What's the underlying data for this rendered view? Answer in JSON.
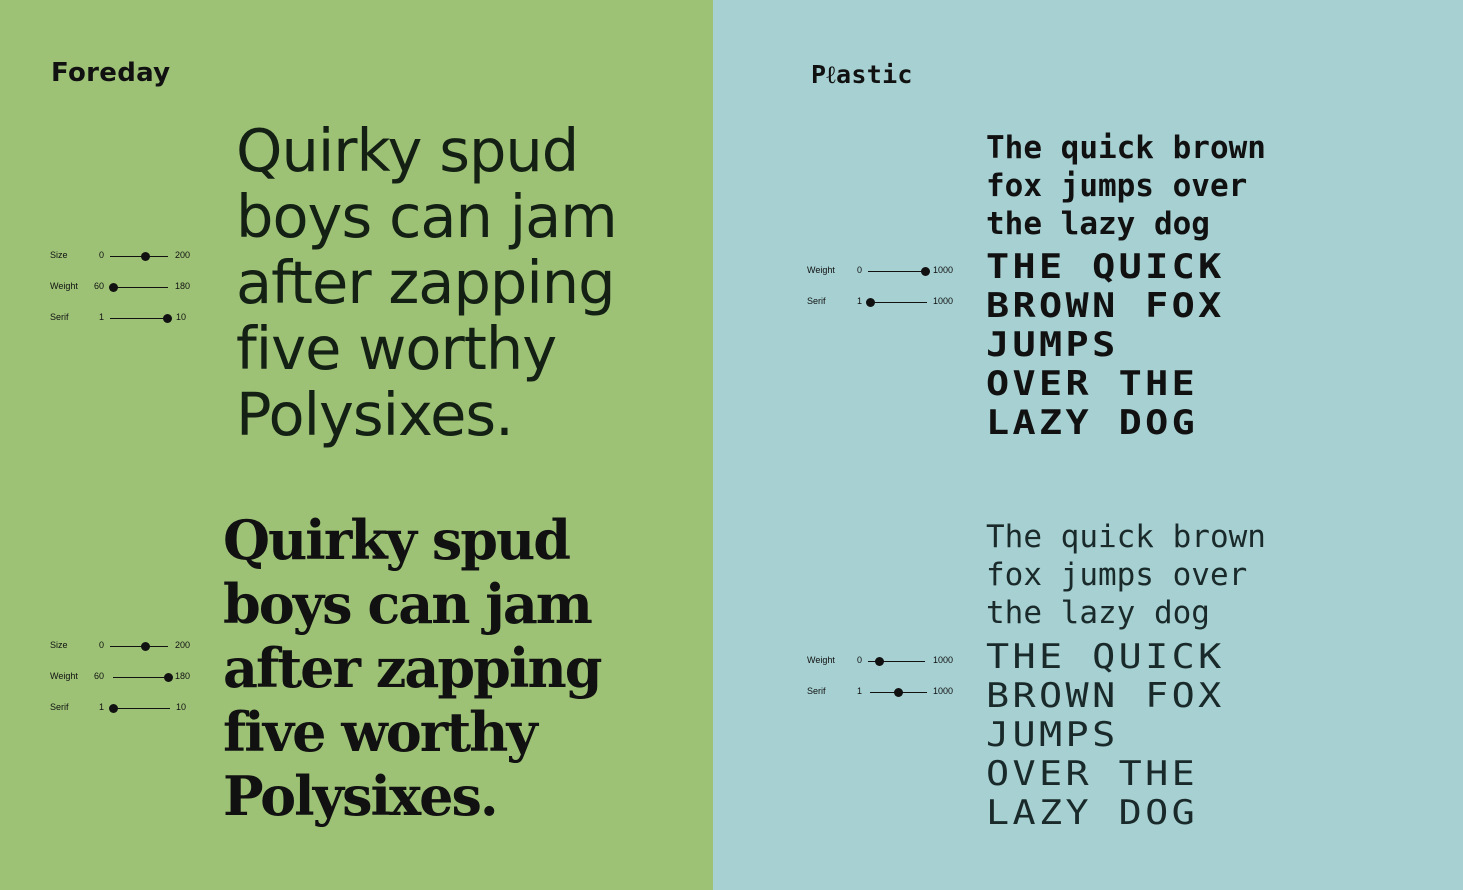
{
  "left": {
    "title": "Foreday",
    "color": "#9dc276",
    "specimens": [
      {
        "text": "Quirky spud\nboys can jam\nafter zapping\nfive worthy\nPolysixes.",
        "controls": [
          {
            "label": "Size",
            "min": "0",
            "max": "200",
            "value": 120
          },
          {
            "label": "Weight",
            "min": "60",
            "max": "180",
            "value": 60
          },
          {
            "label": "Serif",
            "min": "1",
            "max": "10",
            "value": 10
          }
        ]
      },
      {
        "text": "Quirky spud\nboys can jam\nafter zapping\nfive worthy\nPolysixes.",
        "controls": [
          {
            "label": "Size",
            "min": "0",
            "max": "200",
            "value": 120
          },
          {
            "label": "Weight",
            "min": "60",
            "max": "180",
            "value": 180
          },
          {
            "label": "Serif",
            "min": "1",
            "max": "10",
            "value": 1
          }
        ]
      }
    ]
  },
  "right": {
    "title": "Pℓastic",
    "color": "#a6d0d2",
    "specimens": [
      {
        "text_lower": "The quick brown\nfox jumps over\nthe lazy dog",
        "text_caps": "THE QUICK\nBROWN FOX\nJUMPS\nOVER THE\nLAZY DOG",
        "controls": [
          {
            "label": "Weight",
            "min": "0",
            "max": "1000",
            "value": 1000
          },
          {
            "label": "Serif",
            "min": "1",
            "max": "1000",
            "value": 1
          }
        ]
      },
      {
        "text_lower": "The quick brown\nfox jumps over\nthe lazy dog",
        "text_caps": "THE QUICK\nBROWN FOX\nJUMPS\nOVER THE\nLAZY DOG",
        "controls": [
          {
            "label": "Weight",
            "min": "0",
            "max": "1000",
            "value": 200
          },
          {
            "label": "Serif",
            "min": "1",
            "max": "1000",
            "value": 500
          }
        ]
      }
    ]
  }
}
